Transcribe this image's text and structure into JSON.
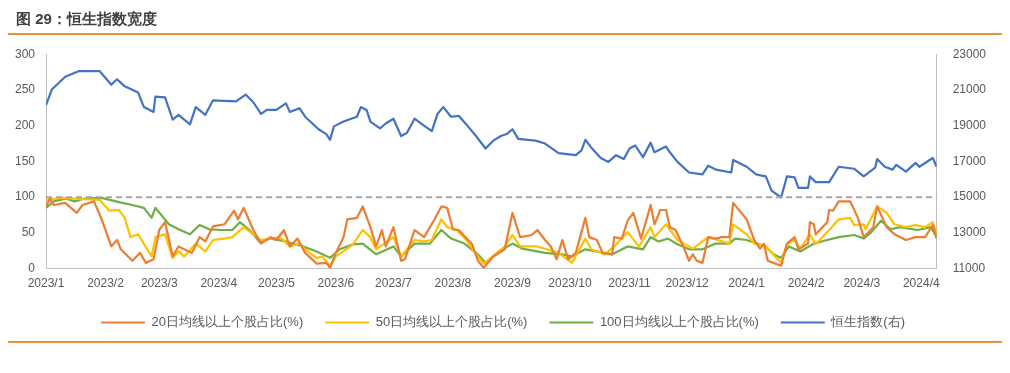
{
  "chart_data": {
    "type": "line",
    "title": "图 29：恒生指数宽度",
    "xlim": [
      "2023-01-01",
      "2024-04-09"
    ],
    "xticks": [
      {
        "value": "2023-01-01",
        "label": "2023/1"
      },
      {
        "value": "2023-02-01",
        "label": "2023/2"
      },
      {
        "value": "2023-03-01",
        "label": "2023/3"
      },
      {
        "value": "2023-04-01",
        "label": "2023/4"
      },
      {
        "value": "2023-05-01",
        "label": "2023/5"
      },
      {
        "value": "2023-06-01",
        "label": "2023/6"
      },
      {
        "value": "2023-07-01",
        "label": "2023/7"
      },
      {
        "value": "2023-08-01",
        "label": "2023/8"
      },
      {
        "value": "2023-09-01",
        "label": "2023/9"
      },
      {
        "value": "2023-10-01",
        "label": "2023/10"
      },
      {
        "value": "2023-11-01",
        "label": "2023/11"
      },
      {
        "value": "2023-12-01",
        "label": "2023/12"
      },
      {
        "value": "2024-01-01",
        "label": "2024/1"
      },
      {
        "value": "2024-02-01",
        "label": "2024/2"
      },
      {
        "value": "2024-03-01",
        "label": "2024/3"
      },
      {
        "value": "2024-04-01",
        "label": "2024/4"
      }
    ],
    "ylim": [
      0,
      300
    ],
    "yticks": [
      0,
      50,
      100,
      150,
      200,
      250,
      300
    ],
    "y2lim": [
      11000,
      23000
    ],
    "y2ticks": [
      11000,
      13000,
      15000,
      17000,
      19000,
      21000,
      23000
    ],
    "grid": false,
    "legend": "bottom",
    "marker": "none",
    "line_style": "solid",
    "ref_lines": [
      {
        "axis": "y",
        "value": 100,
        "label": null,
        "color": "#a6a6a6",
        "line_style": "dashed"
      }
    ],
    "series": [
      {
        "name": "20日均线以上个股占比(%)",
        "color": "#ed7d31",
        "x": [
          "2023-01-01",
          "2023-01-03",
          "2023-01-05",
          "2023-01-11",
          "2023-01-17",
          "2023-01-20",
          "2023-01-26",
          "2023-01-30",
          "2023-02-04",
          "2023-02-07",
          "2023-02-09",
          "2023-02-15",
          "2023-02-19",
          "2023-02-22",
          "2023-02-26",
          "2023-03-01",
          "2023-03-04",
          "2023-03-08",
          "2023-03-11",
          "2023-03-14",
          "2023-03-18",
          "2023-03-22",
          "2023-03-25",
          "2023-03-29",
          "2023-04-04",
          "2023-04-09",
          "2023-04-11",
          "2023-04-14",
          "2023-04-19",
          "2023-04-23",
          "2023-04-28",
          "2023-05-01",
          "2023-05-05",
          "2023-05-08",
          "2023-05-12",
          "2023-05-16",
          "2023-05-22",
          "2023-05-27",
          "2023-05-29",
          "2023-06-01",
          "2023-06-05",
          "2023-06-07",
          "2023-06-12",
          "2023-06-15",
          "2023-06-19",
          "2023-06-22",
          "2023-06-25",
          "2023-06-27",
          "2023-07-01",
          "2023-07-05",
          "2023-07-07",
          "2023-07-12",
          "2023-07-17",
          "2023-07-22",
          "2023-07-26",
          "2023-07-29",
          "2023-08-01",
          "2023-08-04",
          "2023-08-11",
          "2023-08-14",
          "2023-08-17",
          "2023-08-22",
          "2023-08-28",
          "2023-09-01",
          "2023-09-05",
          "2023-09-11",
          "2023-09-14",
          "2023-09-18",
          "2023-09-21",
          "2023-09-24",
          "2023-09-27",
          "2023-09-30",
          "2023-10-04",
          "2023-10-09",
          "2023-10-11",
          "2023-10-15",
          "2023-10-18",
          "2023-10-23",
          "2023-10-24",
          "2023-10-28",
          "2023-10-31",
          "2023-11-03",
          "2023-11-07",
          "2023-11-12",
          "2023-11-14",
          "2023-11-17",
          "2023-11-20",
          "2023-11-22",
          "2023-11-25",
          "2023-11-29",
          "2023-12-02",
          "2023-12-04",
          "2023-12-06",
          "2023-12-09",
          "2023-12-12",
          "2023-12-16",
          "2023-12-19",
          "2023-12-23",
          "2023-12-25",
          "2024-01-01",
          "2024-01-05",
          "2024-01-08",
          "2024-01-10",
          "2024-01-12",
          "2024-01-15",
          "2024-01-19",
          "2024-01-22",
          "2024-01-26",
          "2024-01-28",
          "2024-02-02",
          "2024-02-03",
          "2024-02-05",
          "2024-02-06",
          "2024-02-12",
          "2024-02-13",
          "2024-02-15",
          "2024-02-18",
          "2024-02-24",
          "2024-02-28",
          "2024-03-02",
          "2024-03-07",
          "2024-03-09",
          "2024-03-14",
          "2024-03-18",
          "2024-03-24",
          "2024-03-29",
          "2024-04-03",
          "2024-04-07",
          "2024-04-09"
        ],
        "values": [
          87,
          98,
          89,
          92,
          78,
          89,
          94,
          69,
          31,
          40,
          27,
          11,
          22,
          8,
          13,
          54,
          65,
          17,
          31,
          27,
          22,
          44,
          38,
          59,
          62,
          81,
          69,
          85,
          54,
          35,
          44,
          40,
          54,
          31,
          42,
          22,
          7,
          8,
          1,
          22,
          44,
          69,
          71,
          87,
          58,
          31,
          54,
          31,
          58,
          11,
          13,
          54,
          44,
          67,
          87,
          85,
          55,
          54,
          34,
          11,
          1,
          17,
          27,
          78,
          44,
          47,
          54,
          40,
          31,
          13,
          40,
          13,
          22,
          71,
          44,
          40,
          22,
          20,
          44,
          42,
          67,
          78,
          42,
          89,
          62,
          82,
          82,
          58,
          54,
          31,
          11,
          20,
          11,
          8,
          44,
          42,
          44,
          44,
          92,
          69,
          40,
          28,
          35,
          11,
          8,
          4,
          35,
          44,
          27,
          35,
          65,
          62,
          48,
          65,
          82,
          81,
          94,
          94,
          71,
          44,
          58,
          87,
          58,
          48,
          40,
          44,
          44,
          61,
          42
        ]
      },
      {
        "name": "50日均线以上个股占比(%)",
        "color": "#ffc000",
        "x": [
          "2023-01-01",
          "2023-01-09",
          "2023-01-29",
          "2023-02-03",
          "2023-02-08",
          "2023-02-11",
          "2023-02-14",
          "2023-02-18",
          "2023-02-25",
          "2023-02-27",
          "2023-03-04",
          "2023-03-08",
          "2023-03-11",
          "2023-03-14",
          "2023-03-20",
          "2023-03-25",
          "2023-03-29",
          "2023-04-04",
          "2023-04-08",
          "2023-04-14",
          "2023-04-19",
          "2023-04-23",
          "2023-05-03",
          "2023-05-08",
          "2023-05-13",
          "2023-05-16",
          "2023-05-22",
          "2023-05-25",
          "2023-05-29",
          "2023-06-01",
          "2023-06-10",
          "2023-06-15",
          "2023-06-19",
          "2023-06-22",
          "2023-07-01",
          "2023-07-05",
          "2023-07-12",
          "2023-07-17",
          "2023-07-21",
          "2023-07-26",
          "2023-07-29",
          "2023-08-03",
          "2023-08-08",
          "2023-08-14",
          "2023-08-17",
          "2023-08-23",
          "2023-08-28",
          "2023-09-01",
          "2023-09-05",
          "2023-09-14",
          "2023-09-25",
          "2023-10-02",
          "2023-10-09",
          "2023-10-12",
          "2023-10-19",
          "2023-10-24",
          "2023-10-31",
          "2023-11-06",
          "2023-11-12",
          "2023-11-14",
          "2023-11-20",
          "2023-11-26",
          "2023-12-04",
          "2023-12-12",
          "2023-12-23",
          "2023-12-25",
          "2024-01-01",
          "2024-01-05",
          "2024-01-11",
          "2024-01-19",
          "2024-01-22",
          "2024-01-26",
          "2024-01-29",
          "2024-02-03",
          "2024-02-06",
          "2024-02-13",
          "2024-02-18",
          "2024-02-24",
          "2024-02-26",
          "2024-03-02",
          "2024-03-03",
          "2024-03-09",
          "2024-03-14",
          "2024-03-18",
          "2024-03-24",
          "2024-03-29",
          "2024-04-03",
          "2024-04-07",
          "2024-04-09"
        ],
        "values": [
          96,
          99,
          96,
          81,
          82,
          71,
          44,
          48,
          17,
          44,
          48,
          15,
          24,
          17,
          35,
          24,
          40,
          42,
          44,
          58,
          48,
          40,
          44,
          31,
          35,
          27,
          15,
          17,
          4,
          17,
          34,
          54,
          44,
          27,
          44,
          17,
          40,
          38,
          40,
          69,
          58,
          54,
          40,
          17,
          7,
          20,
          31,
          47,
          31,
          31,
          22,
          8,
          42,
          27,
          20,
          31,
          51,
          31,
          58,
          44,
          62,
          40,
          28,
          44,
          35,
          62,
          48,
          35,
          31,
          8,
          34,
          40,
          28,
          48,
          34,
          54,
          69,
          71,
          61,
          62,
          55,
          87,
          78,
          62,
          58,
          61,
          58,
          65,
          48
        ]
      },
      {
        "name": "100日均线以上个股占比(%)",
        "color": "#70ad47",
        "x": [
          "2023-01-01",
          "2023-01-05",
          "2023-01-11",
          "2023-01-16",
          "2023-01-21",
          "2023-01-30",
          "2023-02-08",
          "2023-02-15",
          "2023-02-21",
          "2023-02-25",
          "2023-02-27",
          "2023-03-06",
          "2023-03-11",
          "2023-03-17",
          "2023-03-22",
          "2023-03-27",
          "2023-04-03",
          "2023-04-08",
          "2023-04-12",
          "2023-04-17",
          "2023-04-22",
          "2023-04-28",
          "2023-05-06",
          "2023-05-15",
          "2023-05-22",
          "2023-05-29",
          "2023-06-03",
          "2023-06-10",
          "2023-06-15",
          "2023-06-22",
          "2023-07-01",
          "2023-07-05",
          "2023-07-12",
          "2023-07-20",
          "2023-07-26",
          "2023-07-31",
          "2023-08-07",
          "2023-08-14",
          "2023-08-18",
          "2023-08-24",
          "2023-09-01",
          "2023-09-06",
          "2023-09-18",
          "2023-09-27",
          "2023-10-02",
          "2023-10-09",
          "2023-10-23",
          "2023-10-31",
          "2023-11-08",
          "2023-11-12",
          "2023-11-16",
          "2023-11-21",
          "2023-11-26",
          "2023-12-02",
          "2023-12-09",
          "2023-12-16",
          "2023-12-23",
          "2023-12-26",
          "2024-01-01",
          "2024-01-11",
          "2024-01-15",
          "2024-01-19",
          "2024-01-23",
          "2024-01-29",
          "2024-02-05",
          "2024-02-12",
          "2024-02-18",
          "2024-02-26",
          "2024-03-02",
          "2024-03-06",
          "2024-03-11",
          "2024-03-16",
          "2024-03-21",
          "2024-03-30",
          "2024-04-06",
          "2024-04-09"
        ],
        "values": [
          85,
          94,
          98,
          94,
          98,
          99,
          93,
          89,
          85,
          71,
          85,
          62,
          55,
          48,
          61,
          55,
          54,
          54,
          65,
          54,
          38,
          42,
          38,
          31,
          24,
          15,
          27,
          34,
          35,
          20,
          31,
          17,
          35,
          35,
          54,
          42,
          35,
          20,
          8,
          22,
          35,
          28,
          22,
          20,
          17,
          27,
          20,
          31,
          27,
          44,
          38,
          42,
          34,
          27,
          27,
          35,
          35,
          42,
          40,
          31,
          20,
          15,
          31,
          24,
          35,
          40,
          44,
          47,
          42,
          51,
          67,
          55,
          58,
          54,
          58,
          44
        ]
      },
      {
        "name": "恒生指数(右)",
        "color": "#4472c4",
        "axis": "y2",
        "x": [
          "2023-01-01",
          "2023-01-04",
          "2023-01-11",
          "2023-01-18",
          "2023-01-29",
          "2023-02-04",
          "2023-02-07",
          "2023-02-11",
          "2023-02-18",
          "2023-02-21",
          "2023-02-26",
          "2023-02-27",
          "2023-03-04",
          "2023-03-08",
          "2023-03-11",
          "2023-03-17",
          "2023-03-20",
          "2023-03-25",
          "2023-03-29",
          "2023-04-10",
          "2023-04-15",
          "2023-04-19",
          "2023-04-23",
          "2023-04-26",
          "2023-05-01",
          "2023-05-06",
          "2023-05-08",
          "2023-05-13",
          "2023-05-16",
          "2023-05-23",
          "2023-05-27",
          "2023-05-29",
          "2023-05-31",
          "2023-06-05",
          "2023-06-12",
          "2023-06-14",
          "2023-06-17",
          "2023-06-19",
          "2023-06-24",
          "2023-06-27",
          "2023-07-01",
          "2023-07-05",
          "2023-07-08",
          "2023-07-12",
          "2023-07-16",
          "2023-07-21",
          "2023-07-24",
          "2023-07-27",
          "2023-07-31",
          "2023-08-04",
          "2023-08-08",
          "2023-08-13",
          "2023-08-18",
          "2023-08-22",
          "2023-08-26",
          "2023-08-29",
          "2023-09-01",
          "2023-09-04",
          "2023-09-13",
          "2023-09-18",
          "2023-09-25",
          "2023-10-04",
          "2023-10-07",
          "2023-10-09",
          "2023-10-12",
          "2023-10-17",
          "2023-10-21",
          "2023-10-25",
          "2023-10-29",
          "2023-11-01",
          "2023-11-04",
          "2023-11-08",
          "2023-11-12",
          "2023-11-14",
          "2023-11-20",
          "2023-11-22",
          "2023-11-26",
          "2023-12-02",
          "2023-12-09",
          "2023-12-12",
          "2023-12-16",
          "2023-12-24",
          "2023-12-25",
          "2024-01-01",
          "2024-01-06",
          "2024-01-11",
          "2024-01-14",
          "2024-01-19",
          "2024-01-22",
          "2024-01-26",
          "2024-01-28",
          "2024-02-02",
          "2024-02-03",
          "2024-02-06",
          "2024-02-13",
          "2024-02-18",
          "2024-02-26",
          "2024-03-02",
          "2024-03-08",
          "2024-03-09",
          "2024-03-13",
          "2024-03-17",
          "2024-03-19",
          "2024-03-24",
          "2024-03-29",
          "2024-03-31",
          "2024-04-07",
          "2024-04-09"
        ],
        "values": [
          20150,
          21020,
          21740,
          22050,
          22050,
          21290,
          21600,
          21200,
          20850,
          20040,
          19770,
          20630,
          20580,
          19340,
          19600,
          19070,
          20040,
          19610,
          20420,
          20360,
          20740,
          20310,
          19660,
          19880,
          19880,
          20250,
          19770,
          19980,
          19500,
          18800,
          18530,
          18210,
          18960,
          19230,
          19500,
          20040,
          19880,
          19230,
          18850,
          19120,
          19390,
          18420,
          18590,
          19390,
          19070,
          18690,
          19660,
          20040,
          19500,
          19550,
          19070,
          18420,
          17720,
          18160,
          18420,
          18530,
          18800,
          18260,
          18160,
          18000,
          17460,
          17350,
          17620,
          18210,
          17780,
          17190,
          16970,
          17350,
          17130,
          17720,
          17890,
          17240,
          18050,
          17510,
          17830,
          17510,
          16970,
          16380,
          16270,
          16760,
          16540,
          16380,
          17080,
          16700,
          16270,
          16160,
          15360,
          14980,
          16160,
          16110,
          15520,
          15520,
          16160,
          15840,
          15840,
          16700,
          16590,
          16160,
          16650,
          17130,
          16700,
          16540,
          16810,
          16430,
          16920,
          16700,
          17190,
          16700
        ]
      }
    ]
  }
}
